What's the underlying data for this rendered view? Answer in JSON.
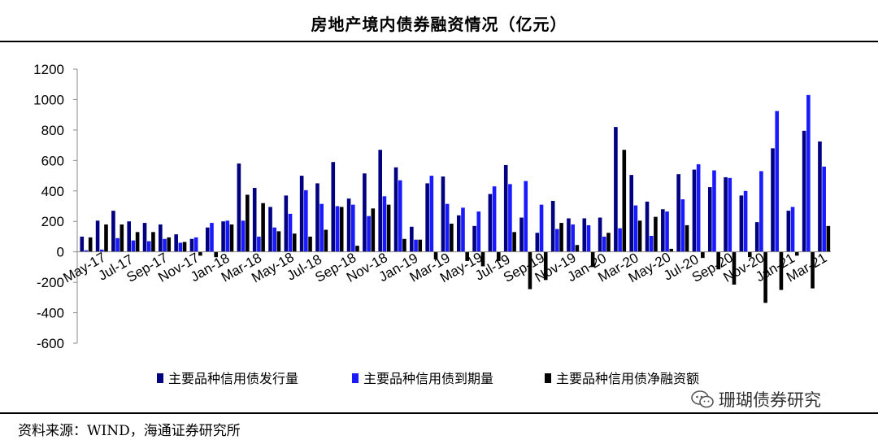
{
  "header": {
    "title": "房地产境内债券融资情况（亿元）"
  },
  "footer": {
    "source": "资料来源：WIND，海通证券研究所"
  },
  "watermark": {
    "text": "珊瑚债券研究",
    "icon": "wechat-icon"
  },
  "chart_data": {
    "type": "bar",
    "title": "房地产境内债券融资情况（亿元）",
    "ylim": [
      -600,
      1200
    ],
    "yticks": [
      -600,
      -400,
      -200,
      0,
      200,
      400,
      600,
      800,
      1000,
      1200
    ],
    "grid": false,
    "legend_position": "bottom",
    "categories": [
      "May-17",
      "Jun-17",
      "Jul-17",
      "Aug-17",
      "Sep-17",
      "Oct-17",
      "Nov-17",
      "Dec-17",
      "Jan-18",
      "Feb-18",
      "Mar-18",
      "Apr-18",
      "May-18",
      "Jun-18",
      "Jul-18",
      "Aug-18",
      "Sep-18",
      "Oct-18",
      "Nov-18",
      "Dec-18",
      "Jan-19",
      "Feb-19",
      "Mar-19",
      "Apr-19",
      "May-19",
      "Jun-19",
      "Jul-19",
      "Aug-19",
      "Sep-19",
      "Oct-19",
      "Nov-19",
      "Dec-19",
      "Jan-20",
      "Feb-20",
      "Mar-20",
      "Apr-20",
      "May-20",
      "Jun-20",
      "Jul-20",
      "Aug-20",
      "Sep-20",
      "Oct-20",
      "Nov-20",
      "Dec-20",
      "Jan-21",
      "Feb-21",
      "Mar-21",
      "Apr-21"
    ],
    "xtick_labels": [
      "May-17",
      "Jul-17",
      "Sep-17",
      "Nov-17",
      "Jan-18",
      "Mar-18",
      "May-18",
      "Jul-18",
      "Sep-18",
      "Nov-18",
      "Jan-19",
      "Mar-19",
      "May-19",
      "Jul-19",
      "Sep-19",
      "Nov-19",
      "Jan-20",
      "Mar-20",
      "May-20",
      "Jul-20",
      "Sep-20",
      "Nov-20",
      "Jan-21",
      "Mar-21"
    ],
    "series": [
      {
        "name": "主要品种信用债发行量",
        "color": "#000080",
        "values": [
          100,
          205,
          270,
          200,
          190,
          180,
          115,
          85,
          160,
          200,
          580,
          420,
          295,
          370,
          500,
          450,
          590,
          350,
          515,
          670,
          555,
          165,
          450,
          495,
          240,
          170,
          380,
          570,
          225,
          125,
          335,
          220,
          220,
          225,
          820,
          505,
          330,
          280,
          510,
          540,
          425,
          490,
          370,
          195,
          680,
          270,
          795,
          725
        ]
      },
      {
        "name": "主要品种信用债到期量",
        "color": "#1a1aff",
        "values": [
          10,
          15,
          90,
          75,
          70,
          85,
          60,
          95,
          190,
          205,
          205,
          100,
          160,
          250,
          405,
          315,
          300,
          310,
          235,
          365,
          470,
          80,
          500,
          315,
          290,
          265,
          430,
          445,
          465,
          310,
          150,
          180,
          175,
          100,
          155,
          305,
          105,
          265,
          345,
          575,
          535,
          485,
          400,
          530,
          925,
          295,
          1030,
          560
        ]
      },
      {
        "name": "主要品种信用债净融资额",
        "color": "#000000",
        "values": [
          95,
          180,
          180,
          130,
          130,
          95,
          65,
          -25,
          -35,
          180,
          375,
          320,
          135,
          120,
          100,
          145,
          295,
          40,
          285,
          310,
          85,
          80,
          -50,
          185,
          -60,
          -95,
          -60,
          130,
          -245,
          -185,
          190,
          45,
          -100,
          125,
          670,
          205,
          230,
          20,
          175,
          -40,
          -115,
          -215,
          -35,
          -335,
          -250,
          -25,
          -240,
          170
        ]
      }
    ]
  }
}
